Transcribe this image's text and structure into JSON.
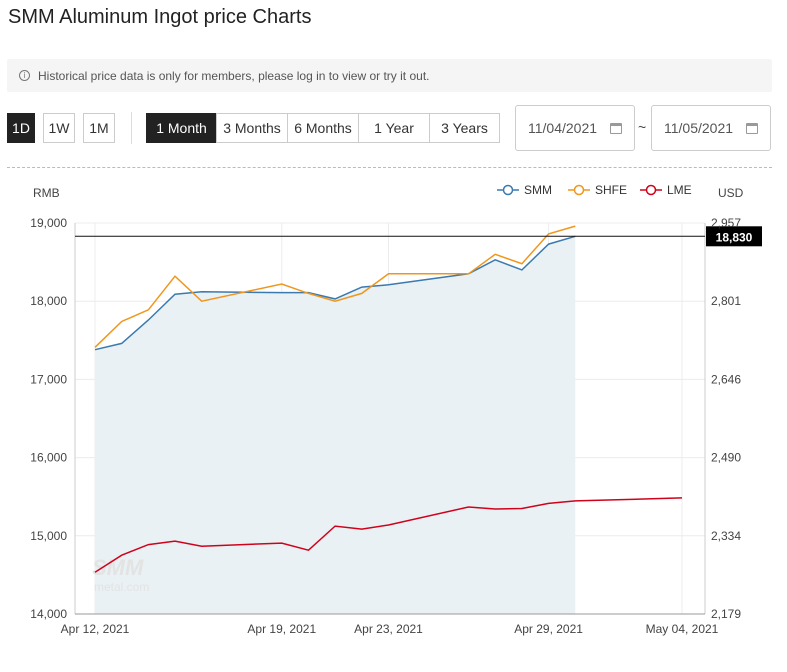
{
  "page": {
    "title": "SMM Aluminum Ingot price Charts",
    "notice": "Historical price data is only for members, please log in to view or try it out."
  },
  "controls": {
    "intervals": [
      "1D",
      "1W",
      "1M"
    ],
    "intervals_active": "1D",
    "ranges": [
      "1 Month",
      "3 Months",
      "6 Months",
      "1 Year",
      "3 Years"
    ],
    "ranges_active": "1 Month",
    "date_from": "11/04/2021",
    "date_to": "11/05/2021",
    "date_sep": "~"
  },
  "colors": {
    "SMM": "#3a7ab0",
    "SHFE": "#f0961c",
    "LME": "#d0021b",
    "area_fill": "#e9f1f4",
    "active_button": "#222222"
  },
  "chart_data": {
    "type": "line",
    "left_axis_label": "RMB",
    "right_axis_label": "USD",
    "ylim_left": [
      14000,
      19000
    ],
    "ylim_right": [
      2179,
      2957
    ],
    "left_ticks": [
      14000,
      15000,
      16000,
      17000,
      18000,
      19000
    ],
    "left_tick_labels": [
      "14,000",
      "15,000",
      "16,000",
      "17,000",
      "18,000",
      "19,000"
    ],
    "right_tick_labels": [
      "2,179",
      "2,334",
      "2,490",
      "2,646",
      "2,801",
      "2,957"
    ],
    "x_tick_labels": [
      "Apr 12, 2021",
      "Apr 19, 2021",
      "Apr 23, 2021",
      "Apr 29, 2021",
      "May 04, 2021"
    ],
    "x_tick_dates": [
      "2021-04-12",
      "2021-04-19",
      "2021-04-23",
      "2021-04-29",
      "2021-05-04"
    ],
    "x": [
      "2021-04-12",
      "2021-04-13",
      "2021-04-14",
      "2021-04-15",
      "2021-04-16",
      "2021-04-19",
      "2021-04-20",
      "2021-04-21",
      "2021-04-22",
      "2021-04-23",
      "2021-04-26",
      "2021-04-27",
      "2021-04-28",
      "2021-04-29",
      "2021-04-30",
      "2021-05-04"
    ],
    "series": [
      {
        "name": "SMM",
        "axis": "left",
        "area": true,
        "values": [
          17380,
          17460,
          17760,
          18090,
          18120,
          18110,
          18110,
          18030,
          18180,
          18210,
          18350,
          18530,
          18400,
          18730,
          18830,
          null
        ]
      },
      {
        "name": "SHFE",
        "axis": "left",
        "area": false,
        "values": [
          17410,
          17740,
          17890,
          18320,
          18000,
          18220,
          18100,
          18000,
          18100,
          18350,
          18350,
          18600,
          18480,
          18860,
          18960,
          null
        ]
      },
      {
        "name": "LME",
        "axis": "right",
        "area": false,
        "values": [
          2262,
          2296,
          2317,
          2324,
          2314,
          2320,
          2306,
          2354,
          2348,
          2356,
          2392,
          2388,
          2389,
          2399,
          2404,
          2410
        ]
      }
    ],
    "last_price_label": "18,830",
    "last_price_value": 18830,
    "legend_position": "top-right",
    "watermark": "SMM metal.com"
  }
}
